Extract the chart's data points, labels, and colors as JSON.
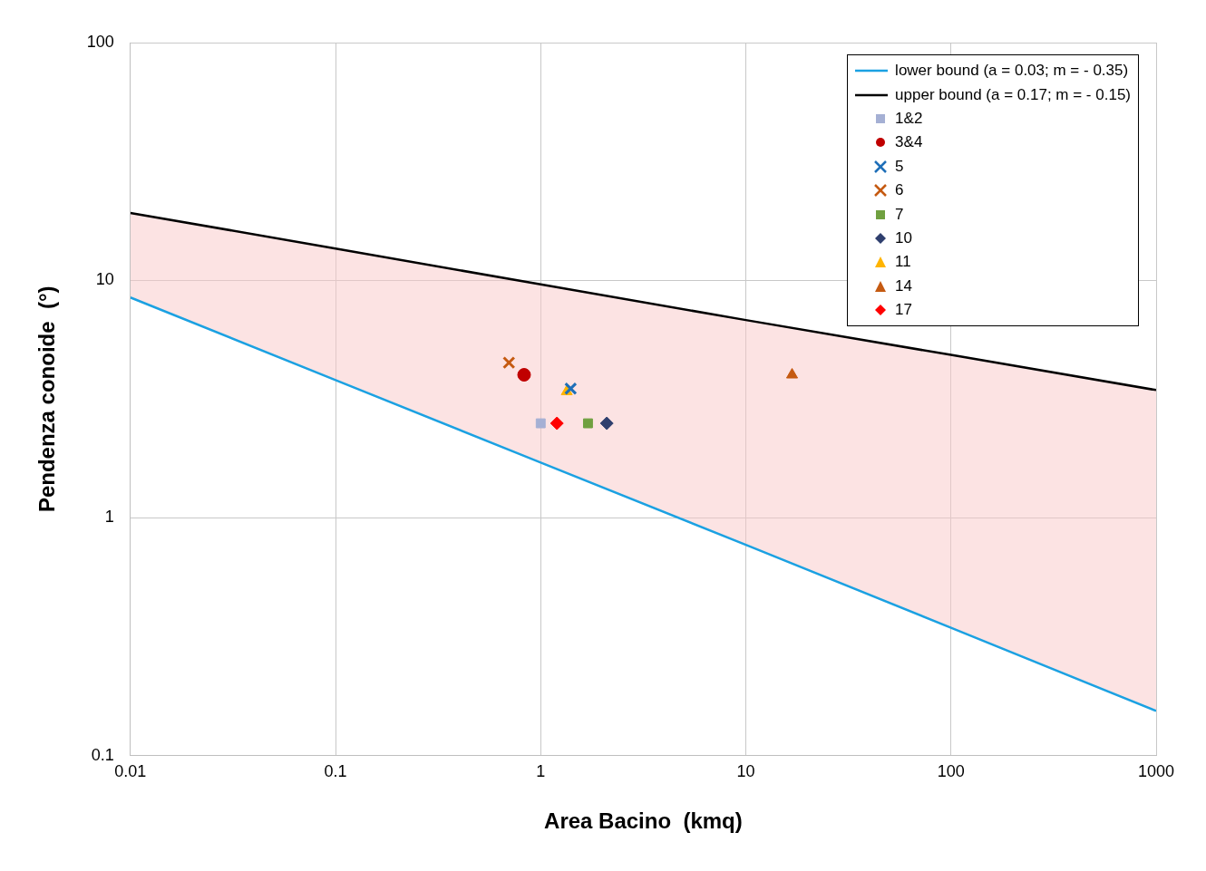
{
  "chart_data": {
    "type": "scatter",
    "xlabel": "Area Bacino  (kmq)",
    "ylabel": "Pendenza conoide  (°)",
    "log": "xy",
    "grid": true,
    "legend": "top right",
    "xlim": [
      0.01,
      1000
    ],
    "xticks": [
      0.01,
      0.1,
      1,
      10,
      100,
      1000
    ],
    "ylim": [
      0.1,
      100
    ],
    "yticks": [
      0.1,
      1,
      10,
      100
    ],
    "series": [
      {
        "name": "lower bound (a = 0.03; m = - 0.35)",
        "type": "line",
        "color": "#1ba1e2",
        "marker": "none",
        "x": [
          0.01,
          0.1,
          1,
          10,
          100,
          1000
        ],
        "values": [
          8.46,
          3.8,
          1.71,
          0.77,
          0.345,
          0.154
        ]
      },
      {
        "name": "upper bound (a = 0.17; m = - 0.15)",
        "type": "area",
        "color": "#000000",
        "marker": "none",
        "x": [
          0.01,
          0.1,
          1,
          10,
          100,
          1000
        ],
        "values": [
          19.2,
          13.6,
          9.6,
          6.8,
          4.85,
          3.45
        ]
      },
      {
        "name": "1&2",
        "color": "#a5b0d4",
        "marker": "square",
        "x": [
          1.0
        ],
        "values": [
          2.5
        ]
      },
      {
        "name": "3&4",
        "color": "#c00000",
        "marker": "circle",
        "x": [
          0.83
        ],
        "values": [
          4.0
        ]
      },
      {
        "name": "5",
        "color": "#1f6fb8",
        "marker": "cross",
        "x": [
          1.4
        ],
        "values": [
          3.5
        ]
      },
      {
        "name": "6",
        "color": "#c55a11",
        "marker": "cross",
        "x": [
          0.7
        ],
        "values": [
          4.5
        ]
      },
      {
        "name": "7",
        "color": "#70a040",
        "marker": "square",
        "x": [
          1.7
        ],
        "values": [
          2.5
        ]
      },
      {
        "name": "10",
        "color": "#2f3f6e",
        "marker": "diamond",
        "x": [
          2.1
        ],
        "values": [
          2.5
        ]
      },
      {
        "name": "11",
        "color": "#ffb400",
        "marker": "triangle",
        "x": [
          1.34
        ],
        "values": [
          3.4
        ]
      },
      {
        "name": "14",
        "color": "#c55a11",
        "marker": "triangle",
        "x": [
          16.8
        ],
        "values": [
          4.0
        ]
      },
      {
        "name": "17",
        "color": "#ff0000",
        "marker": "diamond",
        "x": [
          1.2
        ],
        "values": [
          2.5
        ]
      }
    ]
  }
}
